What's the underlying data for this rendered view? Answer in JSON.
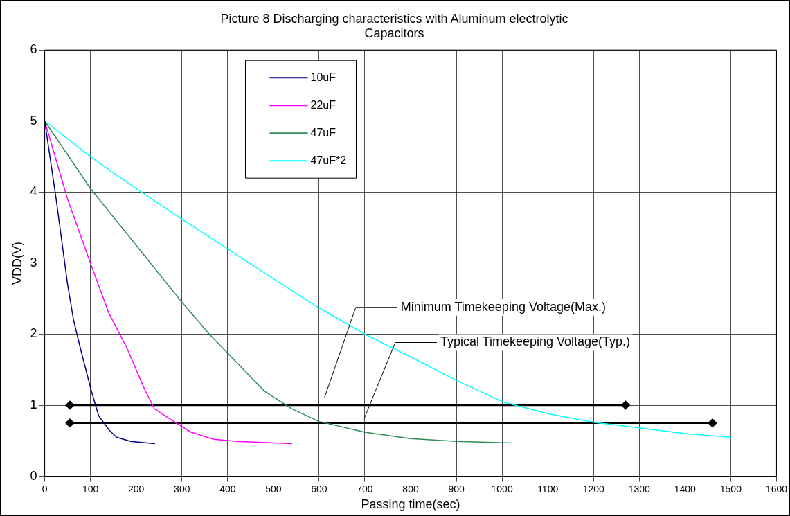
{
  "chart_data": {
    "type": "line",
    "title": "Picture 8 Discharging characteristics with Aluminum electrolytic Capacitors",
    "xlabel": "Passing time(sec)",
    "ylabel": "VDD(V)",
    "xlim": [
      0,
      1600
    ],
    "xticks": [
      0,
      100,
      200,
      300,
      400,
      500,
      600,
      700,
      800,
      900,
      1000,
      1100,
      1200,
      1300,
      1400,
      1500,
      1600
    ],
    "ylim": [
      0,
      6
    ],
    "yticks": [
      0,
      1,
      2,
      3,
      4,
      5,
      6
    ],
    "grid": true,
    "legend": "top",
    "marker": "none",
    "line_style": "solid",
    "series": [
      {
        "name": "10uF",
        "color": "#000080",
        "x": [
          0,
          25,
          50,
          63,
          78,
          94,
          102,
          118,
          141,
          157,
          188,
          240
        ],
        "values": [
          5,
          3.9,
          2.7,
          2.2,
          1.8,
          1.4,
          1.2,
          0.85,
          0.65,
          0.55,
          0.49,
          0.46
        ]
      },
      {
        "name": "22uF",
        "color": "#ff00ff",
        "x": [
          0,
          50,
          100,
          140,
          180,
          220,
          240,
          280,
          320,
          370,
          420,
          540
        ],
        "values": [
          5,
          3.9,
          3.0,
          2.3,
          1.8,
          1.2,
          0.95,
          0.78,
          0.62,
          0.52,
          0.49,
          0.46
        ]
      },
      {
        "name": "47uF",
        "color": "#2e8b57",
        "x": [
          0,
          100,
          200,
          300,
          360,
          420,
          480,
          540,
          600,
          700,
          800,
          900,
          1020
        ],
        "values": [
          5,
          4.05,
          3.25,
          2.45,
          2.0,
          1.6,
          1.2,
          0.95,
          0.77,
          0.62,
          0.53,
          0.49,
          0.47
        ]
      },
      {
        "name": "47uF*2",
        "color": "#00ffff",
        "x": [
          0,
          100,
          150,
          200,
          300,
          400,
          500,
          600,
          700,
          800,
          900,
          1000,
          1100,
          1200,
          1300,
          1400,
          1500
        ],
        "values": [
          5,
          4.5,
          4.27,
          4.05,
          3.62,
          3.2,
          2.78,
          2.37,
          2.0,
          1.68,
          1.35,
          1.05,
          0.88,
          0.76,
          0.68,
          0.6,
          0.55
        ]
      },
      {
        "color": "#000000",
        "marker": "diamond",
        "x": [
          55,
          1270
        ],
        "values": [
          1,
          1
        ]
      },
      {
        "color": "#000000",
        "marker": "diamond",
        "x": [
          55,
          1460
        ],
        "values": [
          0.75,
          0.75
        ]
      }
    ],
    "annotations": [
      "Minimum Timekeeping Voltage(Max.)",
      "Typical Timekeeping Voltage(Typ.)"
    ]
  }
}
